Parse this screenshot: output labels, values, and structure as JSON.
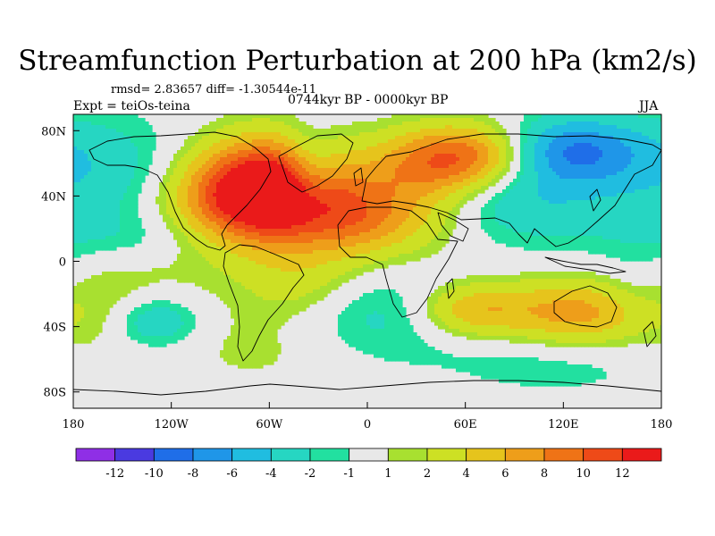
{
  "chart_data": {
    "type": "heatmap",
    "title": "Streamfunction Perturbation at 200 hPa (km2/s)",
    "stats_text": "rmsd= 2.83657 diff= -1.30544e-11",
    "left_label": "Expt = teiOs-teina",
    "center_label": "0744kyr BP - 0000kyr BP",
    "right_label": "JJA",
    "projection": "cylindrical-equidistant",
    "xlim": [
      -180,
      180
    ],
    "ylim": [
      -90,
      90
    ],
    "x_ticks": [
      {
        "value": -180,
        "label": "180"
      },
      {
        "value": -120,
        "label": "120W"
      },
      {
        "value": -60,
        "label": "60W"
      },
      {
        "value": 0,
        "label": "0"
      },
      {
        "value": 60,
        "label": "60E"
      },
      {
        "value": 120,
        "label": "120E"
      },
      {
        "value": 180,
        "label": "180"
      }
    ],
    "y_ticks": [
      {
        "value": 80,
        "label": "80N"
      },
      {
        "value": 40,
        "label": "40N"
      },
      {
        "value": 0,
        "label": "0"
      },
      {
        "value": -40,
        "label": "40S"
      },
      {
        "value": -80,
        "label": "80S"
      }
    ],
    "colorbar": {
      "levels": [
        -14,
        -12,
        -10,
        -8,
        -6,
        -4,
        -2,
        -1,
        1,
        2,
        4,
        6,
        8,
        10,
        12,
        14
      ],
      "labels": [
        "-12",
        "-10",
        "-8",
        "-6",
        "-4",
        "-2",
        "-1",
        "1",
        "2",
        "4",
        "6",
        "8",
        "10",
        "12"
      ],
      "colors": [
        "#8f2fe6",
        "#4a3ae0",
        "#1f6ee8",
        "#1f96e8",
        "#20bde0",
        "#26d6c2",
        "#22e0a0",
        "#e8e8e8",
        "#a8e030",
        "#cde024",
        "#e6c41c",
        "#ee9e1a",
        "#ef7316",
        "#ee4a18",
        "#ea1a1a"
      ]
    },
    "field_centers": [
      {
        "lon": -60,
        "lat": 48,
        "value": 11,
        "rlon": 28,
        "rlat": 20
      },
      {
        "lon": -50,
        "lat": 30,
        "value": 5,
        "rlon": 55,
        "rlat": 25
      },
      {
        "lon": -10,
        "lat": 28,
        "value": 6,
        "rlon": 40,
        "rlat": 16
      },
      {
        "lon": -85,
        "lat": 40,
        "value": 4,
        "rlon": 25,
        "rlat": 18
      },
      {
        "lon": 60,
        "lat": 65,
        "value": 9,
        "rlon": 30,
        "rlat": 14
      },
      {
        "lon": 35,
        "lat": 55,
        "value": 4,
        "rlon": 30,
        "rlat": 15
      },
      {
        "lon": 125,
        "lat": 68,
        "value": -7,
        "rlon": 30,
        "rlat": 14
      },
      {
        "lon": 110,
        "lat": 45,
        "value": -3,
        "rlon": 55,
        "rlat": 25
      },
      {
        "lon": 85,
        "lat": 35,
        "value": -1.5,
        "rlon": 30,
        "rlat": 15
      },
      {
        "lon": -35,
        "lat": 52,
        "value": -4,
        "rlon": 12,
        "rlat": 20
      },
      {
        "lon": -160,
        "lat": 55,
        "value": -3,
        "rlon": 35,
        "rlat": 25
      },
      {
        "lon": -140,
        "lat": 15,
        "value": -2,
        "rlon": 45,
        "rlat": 12
      },
      {
        "lon": -160,
        "lat": -30,
        "value": 2.5,
        "rlon": 35,
        "rlat": 25
      },
      {
        "lon": -130,
        "lat": -37,
        "value": -5,
        "rlon": 20,
        "rlat": 12
      },
      {
        "lon": 5,
        "lat": -32,
        "value": -3,
        "rlon": 40,
        "rlat": 20
      },
      {
        "lon": 65,
        "lat": -30,
        "value": 6,
        "rlon": 25,
        "rlat": 12
      },
      {
        "lon": 130,
        "lat": -32,
        "value": 7,
        "rlon": 30,
        "rlat": 15
      },
      {
        "lon": 120,
        "lat": -60,
        "value": -2,
        "rlon": 50,
        "rlat": 15
      },
      {
        "lon": -40,
        "lat": -15,
        "value": 2.5,
        "rlon": 25,
        "rlat": 15
      },
      {
        "lon": 165,
        "lat": -20,
        "value": -2,
        "rlon": 20,
        "rlat": 20
      },
      {
        "lon": -60,
        "lat": -50,
        "value": 1.5,
        "rlon": 40,
        "rlat": 20
      }
    ]
  }
}
